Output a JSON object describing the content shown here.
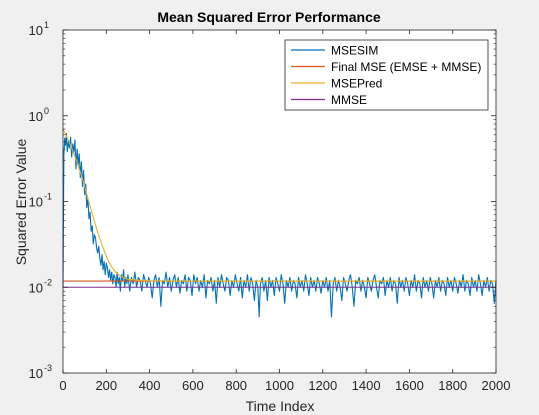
{
  "chart_data": {
    "type": "line",
    "title": "Mean Squared Error Performance",
    "xlabel": "Time Index",
    "ylabel": "Squared Error Value",
    "xlim": [
      0,
      2000
    ],
    "ylim": [
      0.001,
      10
    ],
    "yscale": "log",
    "grid": false,
    "legend_position": "top-right",
    "x_ticks": [
      "0",
      "200",
      "400",
      "600",
      "800",
      "1000",
      "1200",
      "1400",
      "1600",
      "1800",
      "2000"
    ],
    "y_ticks": [
      {
        "base": "10",
        "exp": "1"
      },
      {
        "base": "10",
        "exp": "0"
      },
      {
        "base": "10",
        "exp": "-1"
      },
      {
        "base": "10",
        "exp": "-2"
      },
      {
        "base": "10",
        "exp": "-3"
      }
    ],
    "series": [
      {
        "name": "MSESIM",
        "color": "#0072BD",
        "points": [
          [
            0,
            0.01
          ],
          [
            4,
            0.35
          ],
          [
            8,
            0.55
          ],
          [
            12,
            0.45
          ],
          [
            16,
            0.62
          ],
          [
            20,
            0.38
          ],
          [
            25,
            0.5
          ],
          [
            30,
            0.42
          ],
          [
            35,
            0.56
          ],
          [
            40,
            0.33
          ],
          [
            45,
            0.47
          ],
          [
            50,
            0.38
          ],
          [
            55,
            0.52
          ],
          [
            60,
            0.24
          ],
          [
            65,
            0.41
          ],
          [
            70,
            0.27
          ],
          [
            75,
            0.36
          ],
          [
            80,
            0.19
          ],
          [
            85,
            0.29
          ],
          [
            90,
            0.15
          ],
          [
            95,
            0.23
          ],
          [
            100,
            0.12
          ],
          [
            105,
            0.16
          ],
          [
            110,
            0.085
          ],
          [
            115,
            0.11
          ],
          [
            120,
            0.063
          ],
          [
            125,
            0.075
          ],
          [
            130,
            0.045
          ],
          [
            135,
            0.052
          ],
          [
            140,
            0.032
          ],
          [
            145,
            0.041
          ],
          [
            150,
            0.038
          ],
          [
            155,
            0.029
          ],
          [
            160,
            0.025
          ],
          [
            165,
            0.03
          ],
          [
            170,
            0.022
          ],
          [
            175,
            0.018
          ],
          [
            180,
            0.024
          ],
          [
            185,
            0.016
          ],
          [
            190,
            0.02
          ],
          [
            195,
            0.014
          ],
          [
            200,
            0.019
          ],
          [
            205,
            0.017
          ],
          [
            210,
            0.013
          ],
          [
            215,
            0.016
          ],
          [
            220,
            0.012
          ],
          [
            225,
            0.015
          ],
          [
            230,
            0.011
          ],
          [
            235,
            0.014
          ],
          [
            240,
            0.013
          ],
          [
            245,
            0.01
          ],
          [
            250,
            0.015
          ],
          [
            255,
            0.011
          ],
          [
            260,
            0.013
          ],
          [
            265,
            0.009
          ],
          [
            270,
            0.014
          ],
          [
            275,
            0.012
          ],
          [
            280,
            0.016
          ],
          [
            285,
            0.01
          ],
          [
            290,
            0.013
          ],
          [
            295,
            0.011
          ],
          [
            300,
            0.014
          ],
          [
            308,
            0.009
          ],
          [
            316,
            0.013
          ],
          [
            324,
            0.011
          ],
          [
            332,
            0.015
          ],
          [
            340,
            0.01
          ],
          [
            348,
            0.013
          ],
          [
            356,
            0.012
          ],
          [
            364,
            0.009
          ],
          [
            372,
            0.014
          ],
          [
            380,
            0.012
          ],
          [
            388,
            0.01
          ],
          [
            396,
            0.013
          ],
          [
            404,
            0.011
          ],
          [
            412,
            0.0075
          ],
          [
            420,
            0.012
          ],
          [
            428,
            0.014
          ],
          [
            436,
            0.01
          ],
          [
            444,
            0.013
          ],
          [
            452,
            0.006
          ],
          [
            460,
            0.012
          ],
          [
            468,
            0.011
          ],
          [
            476,
            0.015
          ],
          [
            484,
            0.01
          ],
          [
            492,
            0.013
          ],
          [
            500,
            0.009
          ],
          [
            508,
            0.012
          ],
          [
            516,
            0.014
          ],
          [
            524,
            0.01
          ],
          [
            532,
            0.013
          ],
          [
            540,
            0.0085
          ],
          [
            548,
            0.012
          ],
          [
            556,
            0.011
          ],
          [
            564,
            0.014
          ],
          [
            572,
            0.009
          ],
          [
            580,
            0.013
          ],
          [
            588,
            0.012
          ],
          [
            596,
            0.008
          ],
          [
            604,
            0.014
          ],
          [
            612,
            0.011
          ],
          [
            620,
            0.013
          ],
          [
            628,
            0.009
          ],
          [
            636,
            0.012
          ],
          [
            644,
            0.01
          ],
          [
            652,
            0.014
          ],
          [
            660,
            0.0075
          ],
          [
            668,
            0.012
          ],
          [
            676,
            0.011
          ],
          [
            684,
            0.013
          ],
          [
            692,
            0.009
          ],
          [
            700,
            0.012
          ],
          [
            708,
            0.0065
          ],
          [
            716,
            0.013
          ],
          [
            724,
            0.01
          ],
          [
            732,
            0.014
          ],
          [
            740,
            0.011
          ],
          [
            748,
            0.009
          ],
          [
            756,
            0.013
          ],
          [
            764,
            0.012
          ],
          [
            772,
            0.008
          ],
          [
            780,
            0.012
          ],
          [
            788,
            0.01
          ],
          [
            796,
            0.014
          ],
          [
            804,
            0.011
          ],
          [
            812,
            0.009
          ],
          [
            820,
            0.013
          ],
          [
            828,
            0.0075
          ],
          [
            836,
            0.012
          ],
          [
            844,
            0.01
          ],
          [
            852,
            0.014
          ],
          [
            860,
            0.009
          ],
          [
            868,
            0.013
          ],
          [
            876,
            0.011
          ],
          [
            884,
            0.007
          ],
          [
            892,
            0.012
          ],
          [
            900,
            0.01
          ],
          [
            906,
            0.0045
          ],
          [
            912,
            0.011
          ],
          [
            920,
            0.013
          ],
          [
            928,
            0.009
          ],
          [
            936,
            0.012
          ],
          [
            944,
            0.007
          ],
          [
            952,
            0.013
          ],
          [
            960,
            0.01
          ],
          [
            968,
            0.012
          ],
          [
            976,
            0.008
          ],
          [
            984,
            0.013
          ],
          [
            992,
            0.011
          ],
          [
            1000,
            0.009
          ],
          [
            1008,
            0.014
          ],
          [
            1016,
            0.011
          ],
          [
            1024,
            0.0065
          ],
          [
            1032,
            0.012
          ],
          [
            1040,
            0.01
          ],
          [
            1048,
            0.013
          ],
          [
            1056,
            0.009
          ],
          [
            1064,
            0.012
          ],
          [
            1072,
            0.011
          ],
          [
            1080,
            0.0075
          ],
          [
            1088,
            0.013
          ],
          [
            1096,
            0.01
          ],
          [
            1104,
            0.012
          ],
          [
            1112,
            0.009
          ],
          [
            1120,
            0.014
          ],
          [
            1128,
            0.011
          ],
          [
            1136,
            0.008
          ],
          [
            1144,
            0.013
          ],
          [
            1152,
            0.01
          ],
          [
            1160,
            0.012
          ],
          [
            1168,
            0.009
          ],
          [
            1176,
            0.013
          ],
          [
            1184,
            0.011
          ],
          [
            1192,
            0.0085
          ],
          [
            1200,
            0.012
          ],
          [
            1208,
            0.01
          ],
          [
            1216,
            0.013
          ],
          [
            1224,
            0.009
          ],
          [
            1232,
            0.012
          ],
          [
            1240,
            0.0045
          ],
          [
            1248,
            0.011
          ],
          [
            1256,
            0.013
          ],
          [
            1264,
            0.009
          ],
          [
            1272,
            0.012
          ],
          [
            1280,
            0.01
          ],
          [
            1288,
            0.007
          ],
          [
            1296,
            0.013
          ],
          [
            1304,
            0.011
          ],
          [
            1312,
            0.009
          ],
          [
            1320,
            0.012
          ],
          [
            1328,
            0.014
          ],
          [
            1336,
            0.01
          ],
          [
            1344,
            0.006
          ],
          [
            1352,
            0.012
          ],
          [
            1360,
            0.011
          ],
          [
            1368,
            0.013
          ],
          [
            1376,
            0.009
          ],
          [
            1384,
            0.012
          ],
          [
            1392,
            0.01
          ],
          [
            1400,
            0.0075
          ],
          [
            1408,
            0.013
          ],
          [
            1416,
            0.011
          ],
          [
            1424,
            0.009
          ],
          [
            1432,
            0.012
          ],
          [
            1440,
            0.014
          ],
          [
            1448,
            0.01
          ],
          [
            1456,
            0.0075
          ],
          [
            1464,
            0.012
          ],
          [
            1472,
            0.011
          ],
          [
            1480,
            0.013
          ],
          [
            1488,
            0.008
          ],
          [
            1496,
            0.012
          ],
          [
            1504,
            0.01
          ],
          [
            1512,
            0.013
          ],
          [
            1520,
            0.009
          ],
          [
            1528,
            0.012
          ],
          [
            1536,
            0.011
          ],
          [
            1544,
            0.0065
          ],
          [
            1552,
            0.013
          ],
          [
            1560,
            0.01
          ],
          [
            1568,
            0.012
          ],
          [
            1576,
            0.009
          ],
          [
            1584,
            0.013
          ],
          [
            1592,
            0.011
          ],
          [
            1600,
            0.008
          ],
          [
            1608,
            0.012
          ],
          [
            1616,
            0.01
          ],
          [
            1624,
            0.014
          ],
          [
            1632,
            0.009
          ],
          [
            1640,
            0.012
          ],
          [
            1648,
            0.011
          ],
          [
            1656,
            0.0075
          ],
          [
            1664,
            0.013
          ],
          [
            1672,
            0.01
          ],
          [
            1680,
            0.012
          ],
          [
            1688,
            0.009
          ],
          [
            1696,
            0.013
          ],
          [
            1704,
            0.011
          ],
          [
            1712,
            0.0075
          ],
          [
            1720,
            0.012
          ],
          [
            1728,
            0.01
          ],
          [
            1736,
            0.013
          ],
          [
            1744,
            0.009
          ],
          [
            1752,
            0.012
          ],
          [
            1760,
            0.011
          ],
          [
            1768,
            0.008
          ],
          [
            1776,
            0.013
          ],
          [
            1784,
            0.01
          ],
          [
            1792,
            0.012
          ],
          [
            1800,
            0.009
          ],
          [
            1808,
            0.013
          ],
          [
            1816,
            0.011
          ],
          [
            1824,
            0.0085
          ],
          [
            1832,
            0.012
          ],
          [
            1840,
            0.01
          ],
          [
            1848,
            0.014
          ],
          [
            1856,
            0.009
          ],
          [
            1864,
            0.012
          ],
          [
            1872,
            0.011
          ],
          [
            1880,
            0.008
          ],
          [
            1888,
            0.013
          ],
          [
            1896,
            0.01
          ],
          [
            1904,
            0.012
          ],
          [
            1912,
            0.009
          ],
          [
            1920,
            0.014
          ],
          [
            1928,
            0.011
          ],
          [
            1936,
            0.008
          ],
          [
            1944,
            0.012
          ],
          [
            1952,
            0.01
          ],
          [
            1960,
            0.013
          ],
          [
            1968,
            0.009
          ],
          [
            1976,
            0.012
          ],
          [
            1984,
            0.011
          ],
          [
            1992,
            0.0065
          ],
          [
            2000,
            0.012
          ]
        ]
      },
      {
        "name": "Final MSE (EMSE + MMSE)",
        "color": "#D95319",
        "points": [
          [
            0,
            0.0118
          ],
          [
            2000,
            0.0118
          ]
        ]
      },
      {
        "name": "MSEPred",
        "color": "#EDB120",
        "points": [
          [
            0,
            0.7
          ],
          [
            20,
            0.55
          ],
          [
            40,
            0.42
          ],
          [
            60,
            0.31
          ],
          [
            80,
            0.22
          ],
          [
            100,
            0.15
          ],
          [
            120,
            0.098
          ],
          [
            140,
            0.065
          ],
          [
            160,
            0.044
          ],
          [
            180,
            0.031
          ],
          [
            200,
            0.023
          ],
          [
            220,
            0.018
          ],
          [
            240,
            0.0153
          ],
          [
            260,
            0.0138
          ],
          [
            280,
            0.0129
          ],
          [
            300,
            0.0124
          ],
          [
            340,
            0.0121
          ],
          [
            400,
            0.0119
          ],
          [
            500,
            0.0118
          ],
          [
            2000,
            0.0118
          ]
        ]
      },
      {
        "name": "MMSE",
        "color": "#7E2F8E",
        "points": [
          [
            0,
            0.01
          ],
          [
            2000,
            0.01
          ]
        ]
      }
    ]
  }
}
